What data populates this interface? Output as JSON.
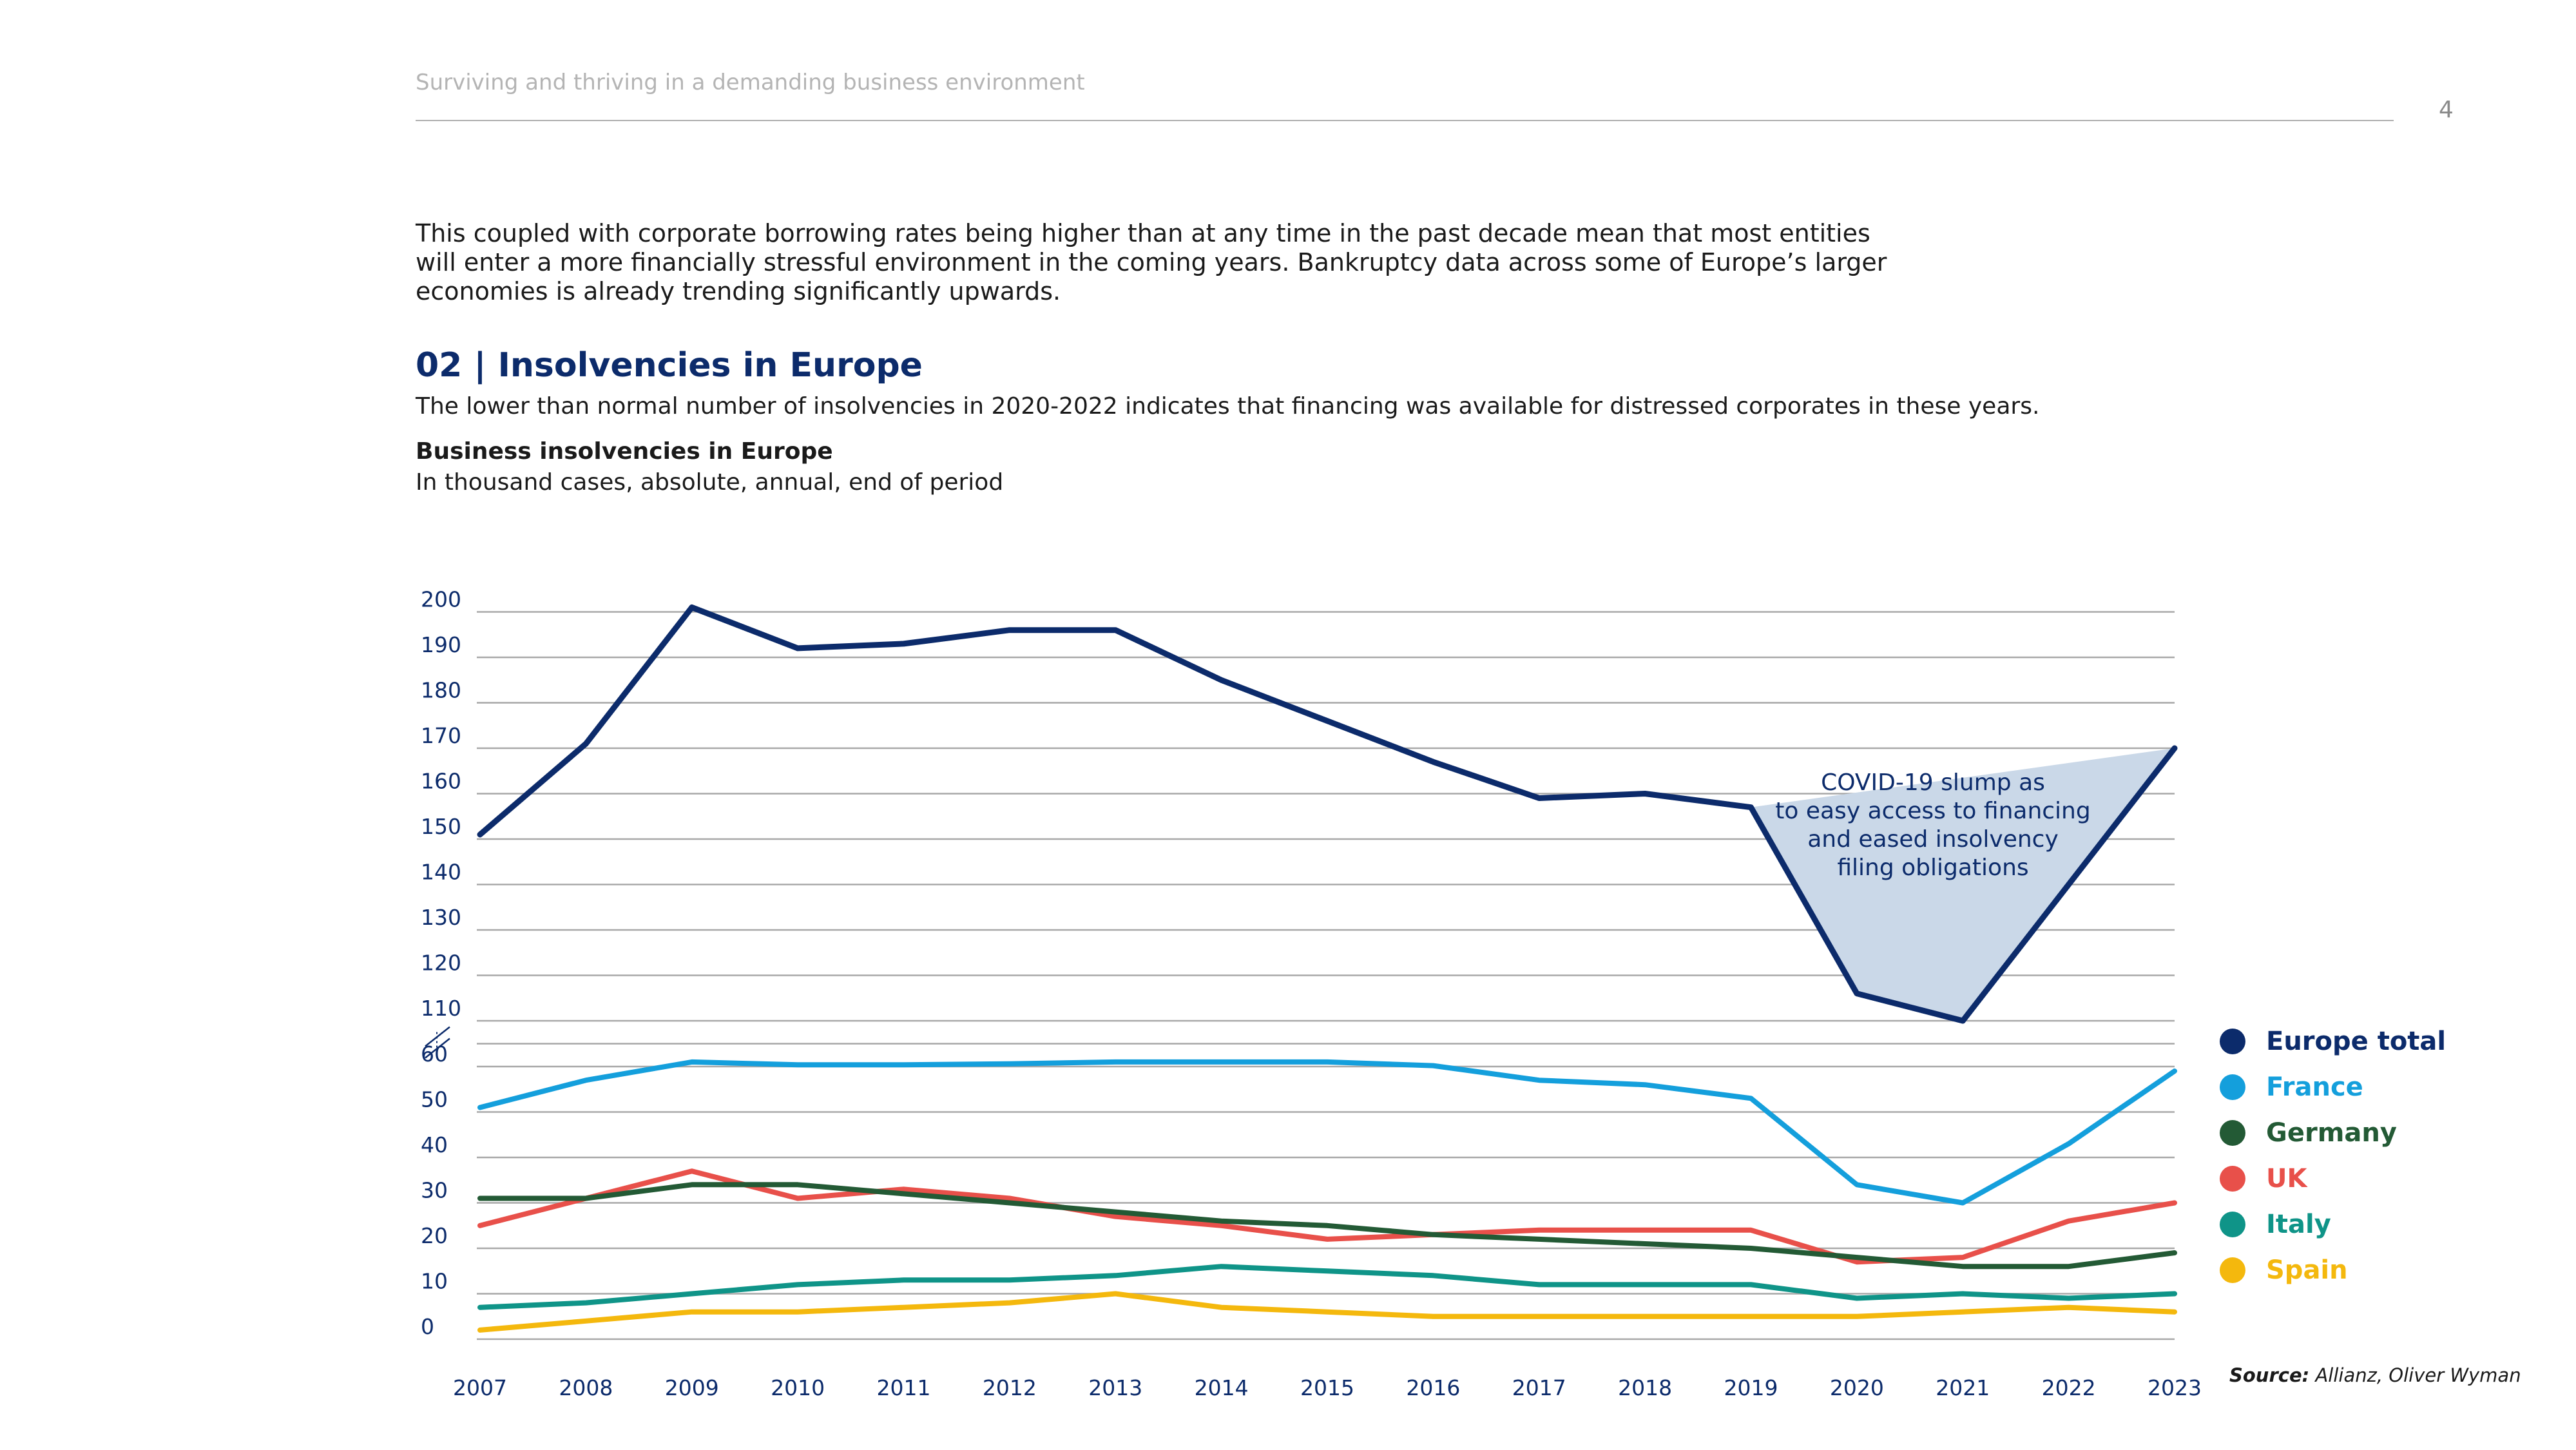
{
  "header": {
    "title": "Surviving and thriving in a demanding business environment",
    "page_number": "4"
  },
  "body_text": "This coupled with corporate borrowing rates being higher than at any time in the past decade mean that most entities will enter a more financially stressful environment in the coming years. Bankruptcy data across some of Europe’s larger economies is already trending significantly upwards.",
  "section": {
    "title": "02 | Insolvencies in Europe",
    "subtitle": "The lower than normal number of insolvencies in 2020-2022 indicates that financing was available for distressed corporates in these years."
  },
  "chart_data": {
    "type": "line",
    "title": "Business insolvencies in Europe",
    "subtitle": "In thousand cases, absolute, annual, end of period",
    "x": [
      2007,
      2008,
      2009,
      2010,
      2011,
      2012,
      2013,
      2014,
      2015,
      2016,
      2017,
      2018,
      2019,
      2020,
      2021,
      2022,
      2023
    ],
    "axis_break": "between 60 and 110",
    "y_ticks_lower": [
      0,
      10,
      20,
      30,
      40,
      50,
      60
    ],
    "y_ticks_upper": [
      110,
      120,
      130,
      140,
      150,
      160,
      170,
      180,
      190,
      200
    ],
    "grid": true,
    "legend_position": "right",
    "series": [
      {
        "name": "Europe total",
        "color": "#0c2b6b",
        "values": [
          151,
          171,
          201,
          192,
          193,
          196,
          196,
          185,
          176,
          167,
          159,
          160,
          157,
          116,
          110,
          140,
          170
        ]
      },
      {
        "name": "France",
        "color": "#149fdc",
        "values": [
          51,
          57,
          65,
          62,
          62,
          63,
          65,
          65,
          65,
          61,
          57,
          56,
          53,
          34,
          30,
          43,
          59
        ]
      },
      {
        "name": "Germany",
        "color": "#235a35",
        "values": [
          31,
          31,
          34,
          34,
          32,
          30,
          28,
          26,
          25,
          23,
          22,
          21,
          20,
          18,
          16,
          16,
          19
        ]
      },
      {
        "name": "UK",
        "color": "#e8504a",
        "values": [
          25,
          31,
          37,
          31,
          33,
          31,
          27,
          25,
          22,
          23,
          24,
          24,
          24,
          17,
          18,
          26,
          30
        ]
      },
      {
        "name": "Italy",
        "color": "#0f9488",
        "values": [
          7,
          8,
          10,
          12,
          13,
          13,
          14,
          16,
          15,
          14,
          12,
          12,
          12,
          9,
          10,
          9,
          10
        ]
      },
      {
        "name": "Spain",
        "color": "#f4b80d",
        "values": [
          2,
          4,
          6,
          6,
          7,
          8,
          10,
          7,
          6,
          5,
          5,
          5,
          5,
          5,
          6,
          7,
          6
        ]
      }
    ],
    "annotation": "COVID-19 slump as to easy access to financing and eased insolvency filing obligations",
    "annotation_lines": [
      "COVID-19 slump as",
      "to easy access to financing",
      "and eased insolvency",
      "filing obligations"
    ],
    "annotation_fill": "#cad8e8"
  },
  "source": {
    "label": "Source:",
    "text": "Allianz, Oliver Wyman"
  }
}
